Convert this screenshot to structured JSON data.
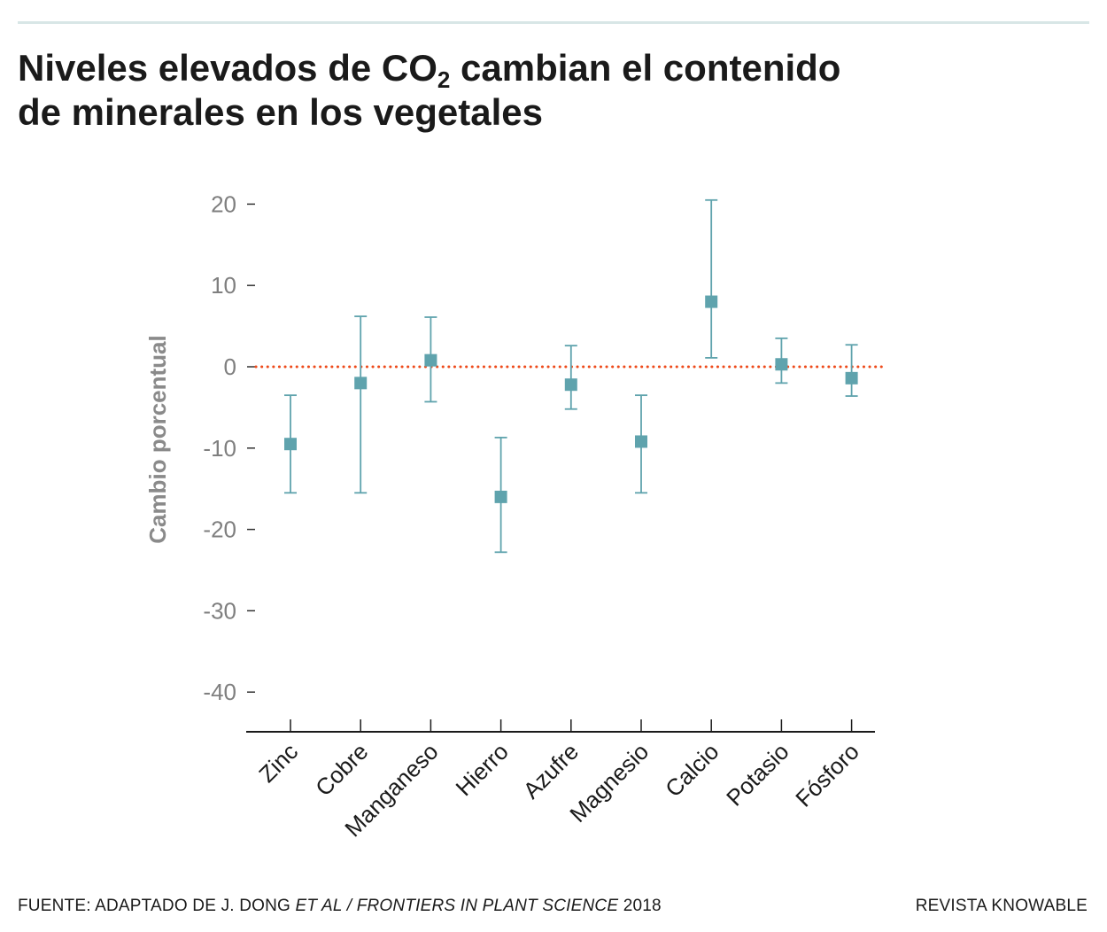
{
  "header": {
    "title_line1_pre": "Niveles elevados de CO",
    "title_sub": "2",
    "title_line1_post": " cambian el contenido",
    "title_line2": "de minerales en los vegetales"
  },
  "footer": {
    "source_prefix": "FUENTE: ADAPTADO DE J. DONG ",
    "source_italic": "ET AL / FRONTIERS IN PLANT SCIENCE",
    "source_year": " 2018",
    "brand": "REVISTA KNOWABLE"
  },
  "colors": {
    "marker": "#5fa3ad",
    "reference_line": "#ee4a1a",
    "axis": "#1a1a1a",
    "tick_label": "#7f7f7f"
  },
  "chart_data": {
    "type": "scatter",
    "ylabel": "Cambio porcentual",
    "ylim": [
      -45,
      22
    ],
    "yticks": [
      20,
      10,
      0,
      -10,
      -20,
      -30,
      -40
    ],
    "categories": [
      "Zinc",
      "Cobre",
      "Manganeso",
      "Hierro",
      "Azufre",
      "Magnesio",
      "Calcio",
      "Potasio",
      "Fósforo"
    ],
    "values": [
      -9.5,
      -2.0,
      0.8,
      -16.0,
      -2.2,
      -9.2,
      8.0,
      0.3,
      -1.4
    ],
    "error_low": [
      -15.5,
      -15.5,
      -4.3,
      -22.8,
      -5.2,
      -15.5,
      1.1,
      -2.0,
      -3.6
    ],
    "error_high": [
      -3.5,
      6.2,
      6.1,
      -8.7,
      2.6,
      -3.5,
      20.5,
      3.5,
      2.7
    ],
    "reference_line": 0,
    "grid": false,
    "legend": "none"
  }
}
